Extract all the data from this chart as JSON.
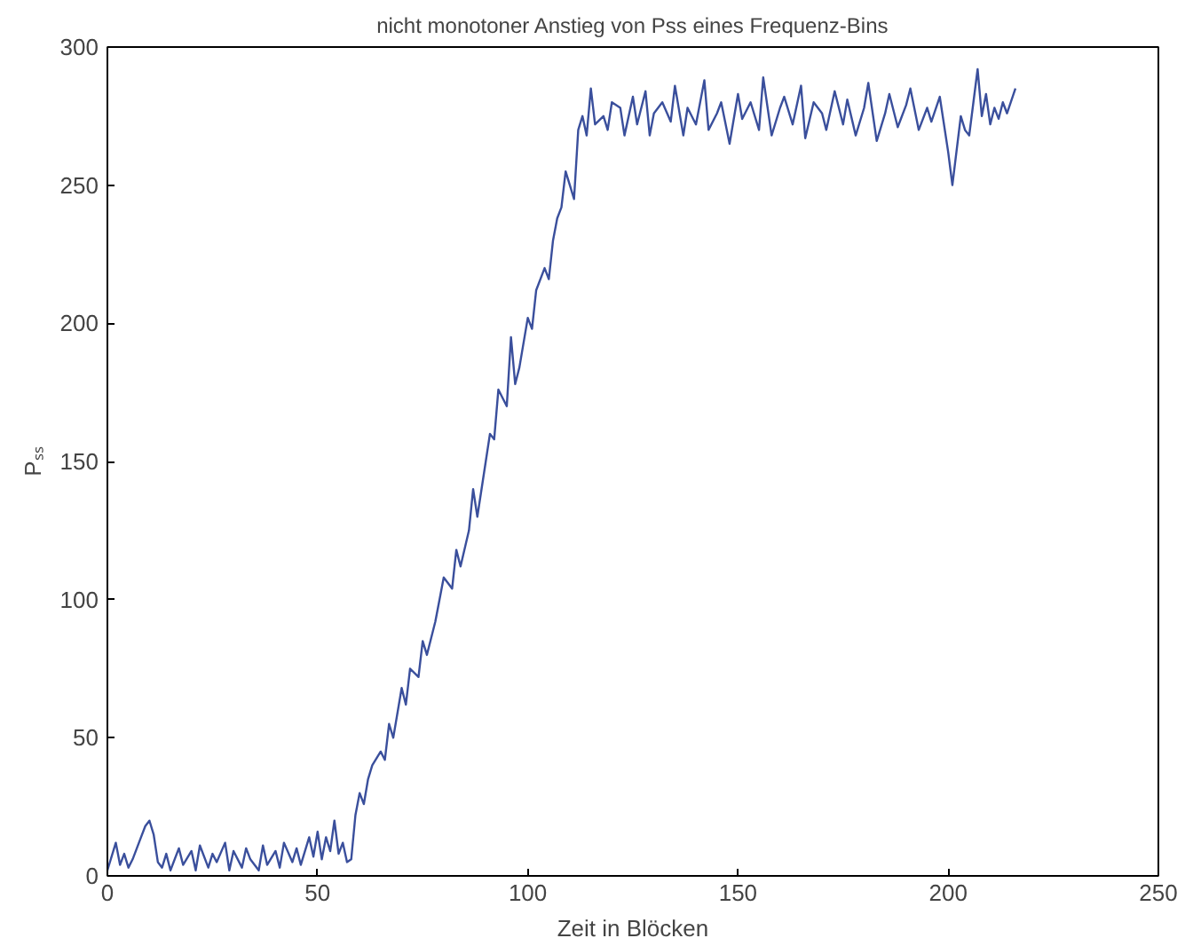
{
  "chart_data": {
    "type": "line",
    "title": "nicht monotoner Anstieg von Pss eines Frequenz-Bins",
    "xlabel": "Zeit in Blöcken",
    "ylabel": "Pₛₛ",
    "x": [
      0,
      2,
      3,
      4,
      5,
      6,
      7,
      8,
      9,
      10,
      11,
      12,
      13,
      14,
      15,
      17,
      18,
      20,
      21,
      22,
      24,
      25,
      26,
      28,
      29,
      30,
      32,
      33,
      34,
      36,
      37,
      38,
      40,
      41,
      42,
      44,
      45,
      46,
      48,
      49,
      50,
      51,
      52,
      53,
      54,
      55,
      56,
      57,
      58,
      59,
      60,
      61,
      62,
      63,
      65,
      66,
      67,
      68,
      70,
      71,
      72,
      74,
      75,
      76,
      78,
      79,
      80,
      82,
      83,
      84,
      86,
      87,
      88,
      90,
      91,
      92,
      93,
      95,
      96,
      97,
      98,
      100,
      101,
      102,
      104,
      105,
      106,
      107,
      108,
      109,
      110,
      111,
      112,
      113,
      114,
      115,
      116,
      118,
      119,
      120,
      122,
      123,
      125,
      126,
      128,
      129,
      130,
      132,
      134,
      135,
      137,
      138,
      140,
      142,
      143,
      145,
      146,
      148,
      150,
      151,
      153,
      155,
      156,
      158,
      160,
      161,
      163,
      165,
      166,
      168,
      170,
      171,
      173,
      175,
      176,
      178,
      180,
      181,
      183,
      185,
      186,
      188,
      190,
      191,
      193,
      195,
      196,
      198,
      200,
      201,
      203,
      204,
      205,
      206,
      207,
      208,
      209,
      210,
      211,
      212,
      213,
      214,
      216
    ],
    "series": [
      {
        "color": "#3a4f9c",
        "values": [
          2,
          12,
          4,
          8,
          3,
          6,
          10,
          14,
          18,
          20,
          15,
          5,
          3,
          8,
          2,
          10,
          4,
          9,
          2,
          11,
          3,
          8,
          5,
          12,
          2,
          9,
          3,
          10,
          6,
          2,
          11,
          4,
          9,
          3,
          12,
          5,
          10,
          4,
          14,
          7,
          16,
          6,
          14,
          9,
          20,
          8,
          12,
          5,
          6,
          22,
          30,
          26,
          35,
          40,
          45,
          42,
          55,
          50,
          68,
          62,
          75,
          72,
          85,
          80,
          92,
          100,
          108,
          104,
          118,
          112,
          125,
          140,
          130,
          150,
          160,
          158,
          176,
          170,
          195,
          178,
          184,
          202,
          198,
          212,
          220,
          216,
          230,
          238,
          242,
          255,
          250,
          245,
          270,
          275,
          268,
          285,
          272,
          275,
          270,
          280,
          278,
          268,
          282,
          272,
          284,
          268,
          276,
          280,
          273,
          286,
          268,
          278,
          272,
          288,
          270,
          276,
          280,
          265,
          283,
          274,
          280,
          270,
          289,
          268,
          278,
          282,
          272,
          286,
          267,
          280,
          276,
          270,
          284,
          272,
          281,
          268,
          278,
          287,
          266,
          276,
          283,
          271,
          279,
          285,
          270,
          278,
          273,
          282,
          262,
          250,
          275,
          270,
          268,
          280,
          292,
          275,
          283,
          272,
          278,
          274,
          280,
          276,
          285
        ]
      }
    ],
    "xlim": [
      0,
      250
    ],
    "ylim": [
      0,
      300
    ],
    "xticks": [
      0,
      50,
      100,
      150,
      200,
      250
    ],
    "yticks": [
      0,
      50,
      100,
      150,
      200,
      250,
      300
    ],
    "grid": false
  }
}
